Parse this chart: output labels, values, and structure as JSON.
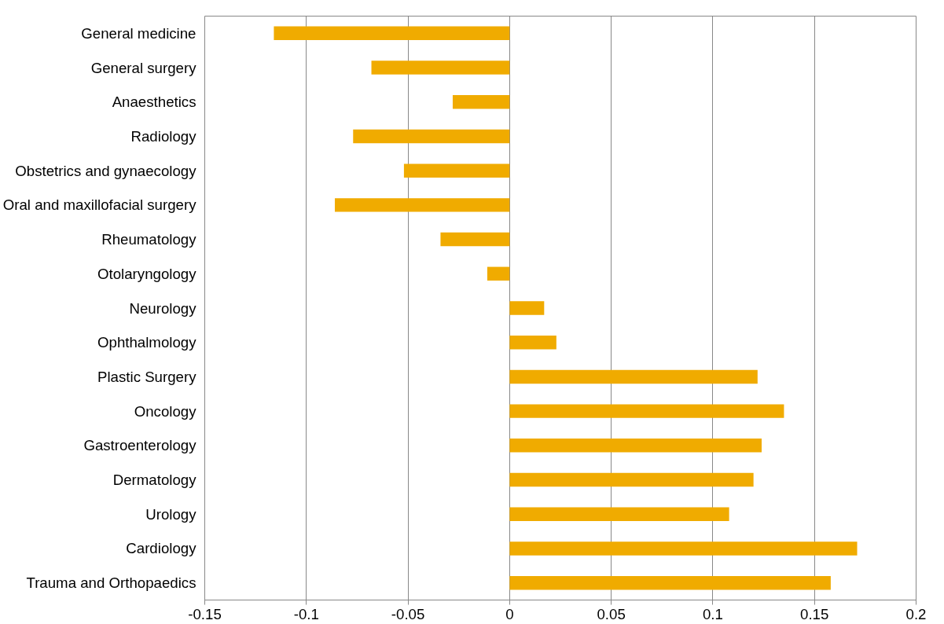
{
  "chart_data": {
    "type": "bar",
    "orientation": "horizontal",
    "categories": [
      "General medicine",
      "General surgery",
      "Anaesthetics",
      "Radiology",
      "Obstetrics and gynaecology",
      "Oral and maxillofacial surgery",
      "Rheumatology",
      "Otolaryngology",
      "Neurology",
      "Ophthalmology",
      "Plastic Surgery",
      "Oncology",
      "Gastroenterology",
      "Dermatology",
      "Urology",
      "Cardiology",
      "Trauma and Orthopaedics"
    ],
    "values": [
      -0.116,
      -0.068,
      -0.028,
      -0.077,
      -0.052,
      -0.086,
      -0.034,
      -0.011,
      0.017,
      0.023,
      0.122,
      0.135,
      0.124,
      0.12,
      0.108,
      0.171,
      0.158
    ],
    "color": "#f0ab00",
    "xlim": [
      -0.15,
      0.2
    ],
    "xticks": [
      -0.15,
      -0.1,
      -0.05,
      0,
      0.05,
      0.1,
      0.15,
      0.2
    ],
    "grid": "x"
  }
}
